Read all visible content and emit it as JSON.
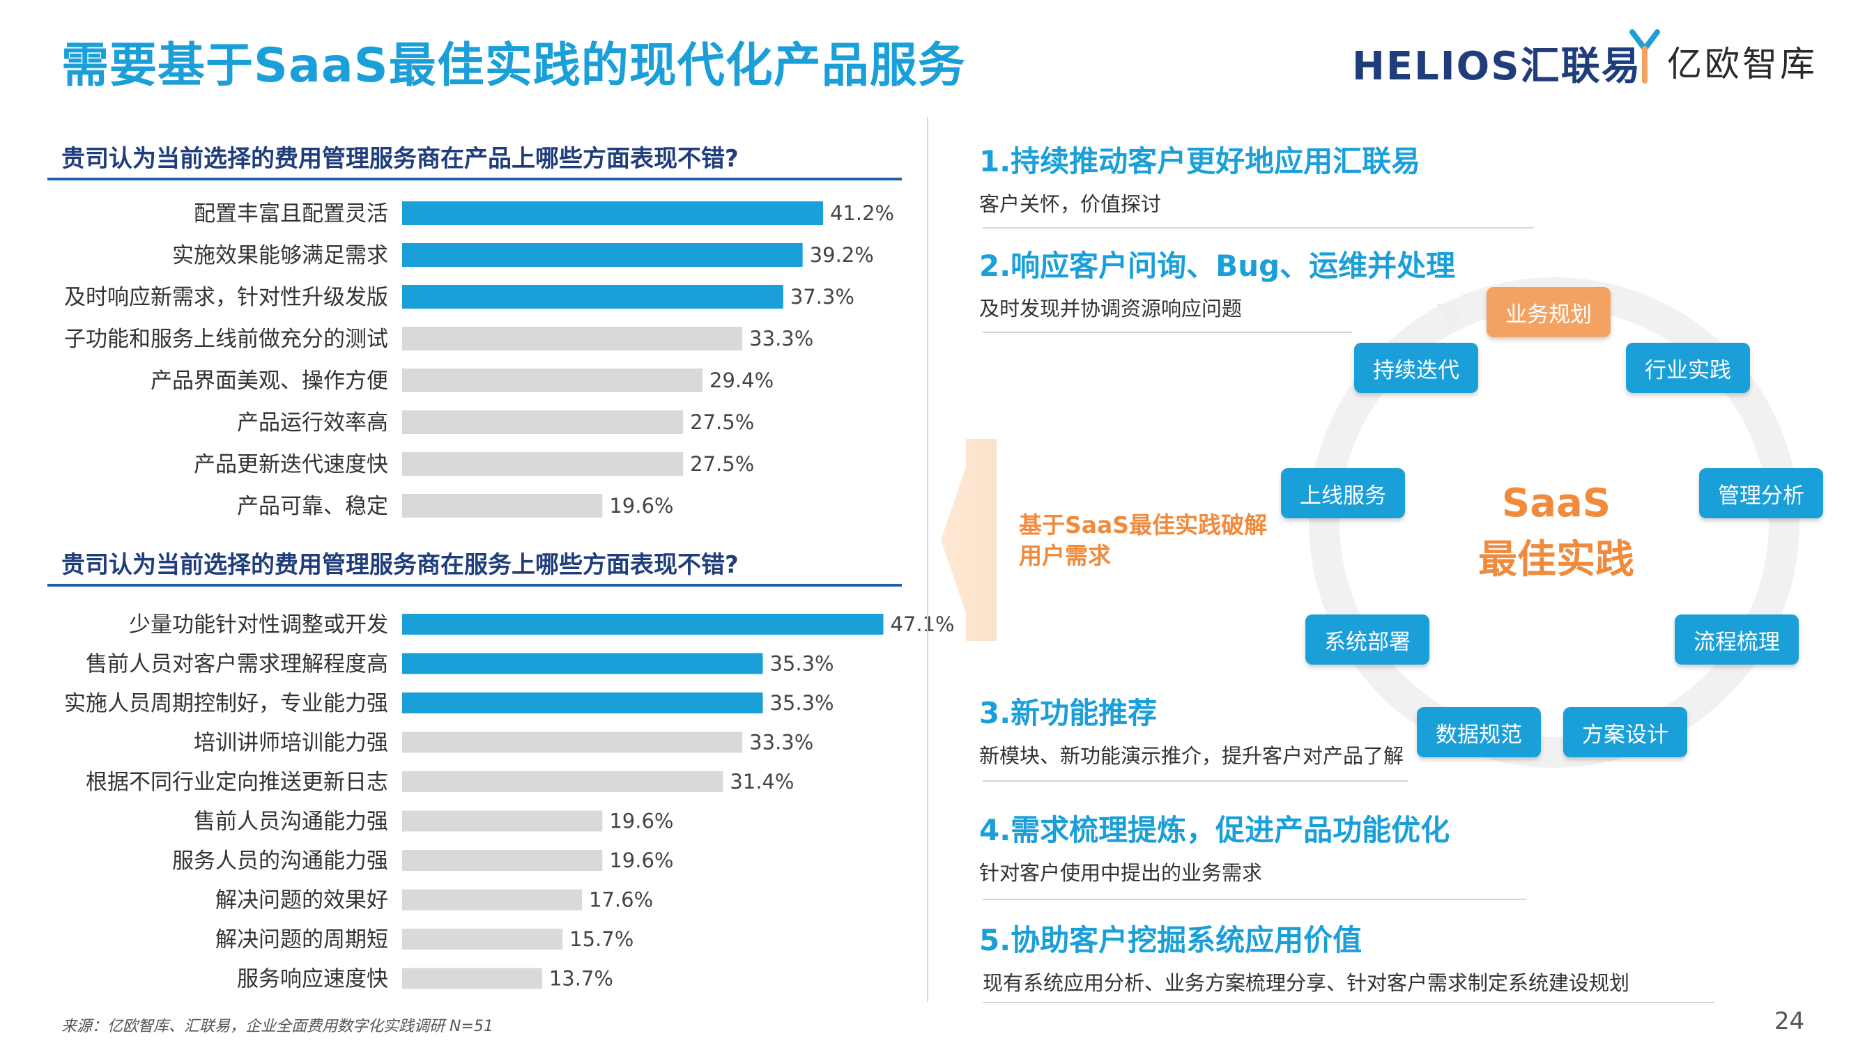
{
  "title": "需要基于SaaS最佳实践的现代化产品服务",
  "logos": {
    "helios": "HELIOS汇联易",
    "yiou": "亿欧智库",
    "yiou_mark": "Y-mark"
  },
  "colors": {
    "highlight_bar": "#1a9fd9",
    "normal_bar": "#d9d9d9",
    "accent_orange": "#f08a3c"
  },
  "chart_data": [
    {
      "type": "bar",
      "orientation": "horizontal",
      "title": "贵司认为当前选择的费用管理服务商在产品上哪些方面表现不错?",
      "categories": [
        "配置丰富且配置灵活",
        "实施效果能够满足需求",
        "及时响应新需求，针对性升级发版",
        "子功能和服务上线前做充分的测试",
        "产品界面美观、操作方便",
        "产品运行效率高",
        "产品更新迭代速度快",
        "产品可靠、稳定"
      ],
      "values": [
        41.2,
        39.2,
        37.3,
        33.3,
        29.4,
        27.5,
        27.5,
        19.6
      ],
      "value_labels": [
        "41.2%",
        "39.2%",
        "37.3%",
        "33.3%",
        "29.4%",
        "27.5%",
        "27.5%",
        "19.6%"
      ],
      "highlighted": [
        true,
        true,
        true,
        false,
        false,
        false,
        false,
        false
      ],
      "unit": "%",
      "grid": false,
      "legend": "none"
    },
    {
      "type": "bar",
      "orientation": "horizontal",
      "title": "贵司认为当前选择的费用管理服务商在服务上哪些方面表现不错?",
      "categories": [
        "少量功能针对性调整或开发",
        "售前人员对客户需求理解程度高",
        "实施人员周期控制好，专业能力强",
        "培训讲师培训能力强",
        "根据不同行业定向推送更新日志",
        "售前人员沟通能力强",
        "服务人员的沟通能力强",
        "解决问题的效果好",
        "解决问题的周期短",
        "服务响应速度快"
      ],
      "values": [
        47.1,
        35.3,
        35.3,
        33.3,
        31.4,
        19.6,
        19.6,
        17.6,
        15.7,
        13.7
      ],
      "value_labels": [
        "47.1%",
        "35.3%",
        "35.3%",
        "33.3%",
        "31.4%",
        "19.6%",
        "19.6%",
        "17.6%",
        "15.7%",
        "13.7%"
      ],
      "highlighted": [
        true,
        true,
        true,
        false,
        false,
        false,
        false,
        false,
        false,
        false
      ],
      "unit": "%",
      "grid": false,
      "legend": "none"
    }
  ],
  "points": [
    {
      "title": "1.持续推动客户更好地应用汇联易",
      "desc": "客户关怀，价值探讨"
    },
    {
      "title": "2.响应客户问询、Bug、运维并处理",
      "desc": "及时发现并协调资源响应问题"
    },
    {
      "title": "3.新功能推荐",
      "desc": "新模块、新功能演示推介，提升客户对产品了解"
    },
    {
      "title": "4.需求梳理提炼，促进产品功能优化",
      "desc": "针对客户使用中提出的业务需求"
    },
    {
      "title": "5.协助客户挖掘系统应用价值",
      "desc": "现有系统应用分析、业务方案梳理分享、针对客户需求制定系统建设规划"
    }
  ],
  "cycle": {
    "center_line1": "SaaS",
    "center_line2": "最佳实践",
    "nodes": [
      "业务规划",
      "行业实践",
      "管理分析",
      "流程梳理",
      "方案设计",
      "数据规范",
      "系统部署",
      "上线服务",
      "持续迭代"
    ]
  },
  "side_text": "基于SaaS最佳实践破解用户需求",
  "source": "来源：亿欧智库、汇联易，企业全面费用数字化实践调研 N=51",
  "page_number": "24"
}
